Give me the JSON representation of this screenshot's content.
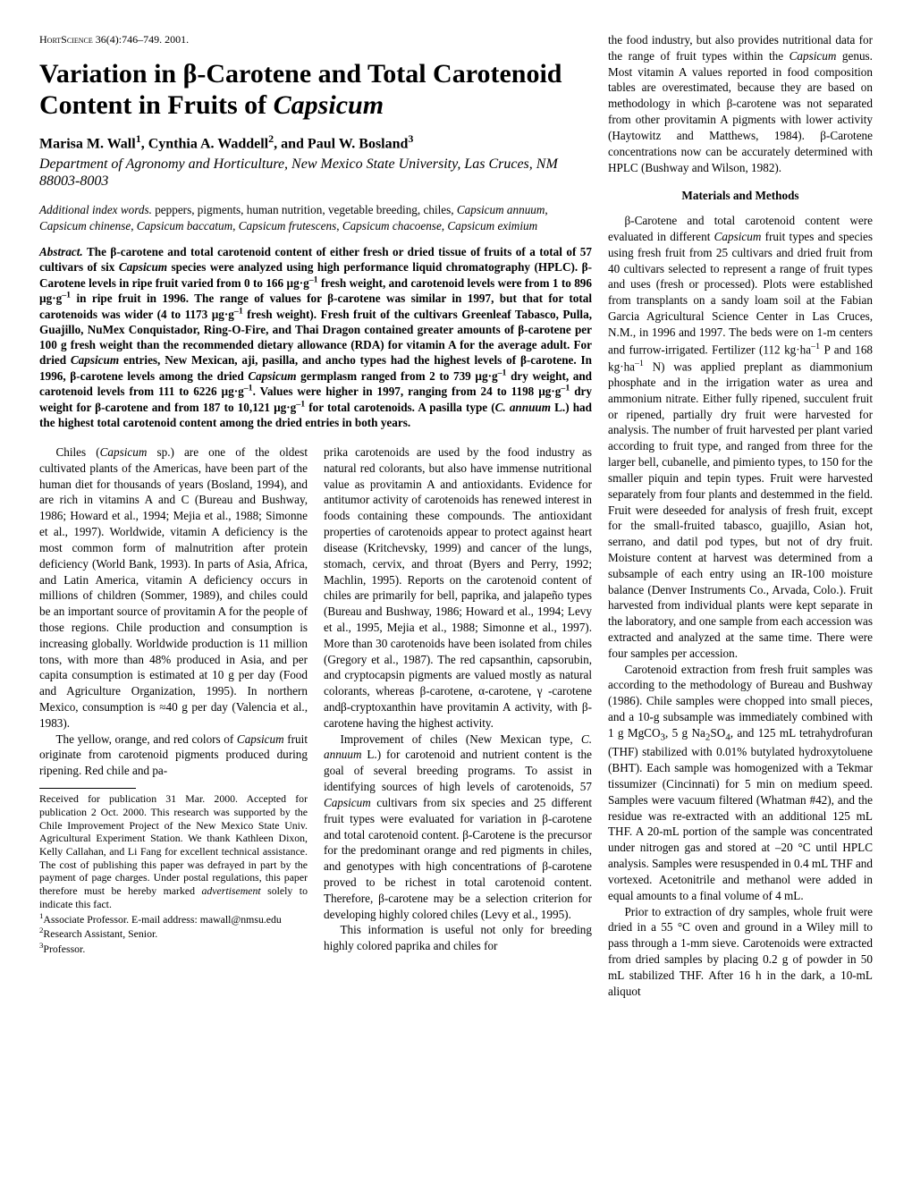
{
  "journal": {
    "name": "HortScience",
    "cite": "36(4):746–749. 2001."
  },
  "title": "Variation in β-Carotene and Total Carotenoid Content in Fruits of Capsicum",
  "authors_html": "Marisa M. Wall<sup>1</sup>, Cynthia A. Waddell<sup>2</sup>, and Paul W. Bosland<sup>3</sup>",
  "affiliation": "Department of Agronomy and Horticulture, New Mexico State University, Las Cruces, NM 88003-8003",
  "index_words_lead": "Additional index words.",
  "index_words": " peppers, pigments, human nutrition, vegetable breeding, chiles, <span class=\"ital\">Capsicum annuum</span>, <span class=\"ital\">Capsicum chinense</span>, <span class=\"ital\">Capsicum baccatum</span>, <span class=\"ital\">Capsicum frutescens</span>, <span class=\"ital\">Capsicum chacoense</span>, <span class=\"ital\">Capsicum eximium</span>",
  "abstract_lead": "Abstract.",
  "abstract": " The β-carotene and total carotenoid content of either fresh or dried tissue of fruits of a total of 57 cultivars of six <span class=\"ital\">Capsicum</span> species were analyzed using high performance liquid chromatography (HPLC). β-Carotene levels in ripe fruit varied from 0 to 166 µg·g<sup>–1</sup> fresh weight, and carotenoid levels were from 1 to 896 µg·g<sup>–1</sup> in ripe fruit in 1996. The range of values for β-carotene was similar in 1997, but that for total carotenoids was wider (4 to 1173 µg·g<sup>–1</sup> fresh weight). Fresh fruit of the cultivars Greenleaf Tabasco, Pulla, Guajillo, NuMex Conquistador, Ring-O-Fire, and Thai Dragon contained greater amounts of β-carotene per 100 g fresh weight than the recommended dietary allowance (RDA) for vitamin A for the average adult. For dried <span class=\"ital\">Capsicum</span> entries, New Mexican, aji, pasilla, and ancho types had the highest levels of β-carotene. In 1996, β-carotene levels among the dried <span class=\"ital\">Capsicum</span> germplasm ranged from 2 to 739 µg·g<sup>–1</sup> dry weight, and carotenoid levels from 111 to 6226 µg·g<sup>–1</sup>. Values were higher in 1997, ranging from 24 to 1198 µg·g<sup>–1</sup> dry weight for β-carotene and from 187 to 10,121 µg·g<sup>–1</sup> for total carotenoids. A pasilla type (<span class=\"ital\">C. annuum</span> L.) had the highest total carotenoid content among the dried entries in both years.",
  "body": {
    "p1": "Chiles (<span class=\"ital\">Capsicum</span> sp.) are one of the oldest cultivated plants of the Americas, have been part of the human diet for thousands of years (Bosland, 1994), and are rich in vitamins A and C (Bureau and Bushway, 1986; Howard et al., 1994; Mejia et al., 1988; Simonne et al., 1997). Worldwide, vitamin A deficiency is the most common form of malnutrition after protein deficiency (World Bank, 1993). In parts of Asia, Africa, and Latin America, vitamin A deficiency occurs in millions of children (Sommer, 1989), and chiles could be an important source of provitamin A for the people of those regions. Chile production and consumption is increasing globally. Worldwide production is 11 million tons, with more than 48% produced in Asia, and per capita consumption is estimated at 10 g per day (Food and Agriculture Organization, 1995). In northern Mexico, consumption is ≈40 g per day (Valencia et al., 1983).",
    "p2": "The yellow, orange, and red colors of <span class=\"ital\">Capsicum</span> fruit originate from carotenoid pigments produced during ripening. Red chile and pa-",
    "p3": "prika carotenoids are used by the food industry as natural red colorants, but also have immense nutritional value as provitamin A and antioxidants. Evidence for antitumor activity of carotenoids has renewed interest in foods containing these compounds. The antioxidant properties of carotenoids appear to protect against heart disease (Kritchevsky, 1999) and cancer of the lungs, stomach, cervix, and throat (Byers and Perry, 1992; Machlin, 1995). Reports on the carotenoid content of chiles are primarily for bell, paprika, and jalapeño types (Bureau and Bushway, 1986; Howard et al., 1994; Levy et al., 1995, Mejia et al., 1988; Simonne et al., 1997). More than 30 carotenoids have been isolated from chiles (Gregory et al., 1987). The red capsanthin, capsorubin, and cryptocapsin pigments are valued mostly as natural colorants, whereas β-carotene, α-carotene, γ -carotene andβ-cryptoxanthin have provitamin A activity, with β-carotene having the highest activity.",
    "p4": "Improvement of chiles (New Mexican type, <span class=\"ital\">C. annuum</span> L.) for carotenoid and nutrient content is the goal of several breeding programs. To assist in identifying sources of high levels of carotenoids, 57 <span class=\"ital\">Capsicum</span> cultivars from six species and 25 different fruit types were evaluated for variation in β-carotene and total carotenoid content. β-Carotene is the precursor for the predominant orange and red pigments in chiles, and genotypes with high concentrations of β-carotene proved to be richest in total carotenoid content. Therefore, β-carotene may be a selection criterion for developing highly colored chiles (Levy et al., 1995).",
    "p5": "This information is useful not only for breeding highly colored paprika and chiles for"
  },
  "footnotes": {
    "f0": "Received for publication 31 Mar. 2000. Accepted for publication 2 Oct. 2000. This research was supported by the Chile Improvement Project of the New Mexico State Univ. Agricultural Experiment Station. We thank Kathleen Dixon, Kelly Callahan, and Li Fang for excellent technical assistance. The cost of publishing this paper was defrayed in part by the payment of page charges. Under postal regulations, this paper therefore must be hereby marked <span class=\"ital\">advertisement</span> solely to indicate this fact.",
    "f1": "<sup>1</sup>Associate Professor. E-mail address: mawall@nmsu.edu",
    "f2": "<sup>2</sup>Research Assistant, Senior.",
    "f3": "<sup>3</sup>Professor."
  },
  "right": {
    "r1": "the food industry, but also provides nutritional data for the range of fruit types within the <span class=\"ital\">Capsicum</span> genus. Most vitamin A values reported in food composition tables are overestimated, because they are based on methodology in which β-carotene was not separated from other provitamin A pigments with lower activity (Haytowitz and Matthews, 1984). β-Carotene concentrations now can be accurately determined with HPLC (Bushway and Wilson, 1982).",
    "mm_head": "Materials and Methods",
    "r2": "β-Carotene and total carotenoid content were evaluated in different <span class=\"ital\">Capsicum</span> fruit types and species using fresh fruit from 25 cultivars and dried fruit from 40 cultivars selected to represent a range of fruit types and uses (fresh or processed). Plots were established from transplants on a sandy loam soil at the Fabian Garcia Agricultural Science Center in Las Cruces, N.M., in 1996 and 1997. The beds were on 1-m centers and furrow-irrigated. Fertilizer (112 kg·ha<sup>–1</sup> P and 168 kg·ha<sup>–1</sup> N) was applied preplant as diammonium phosphate and in the irrigation water as urea and ammonium nitrate. Either fully ripened, succulent fruit or ripened, partially dry fruit were harvested for analysis. The number of fruit harvested per plant varied according to fruit type, and ranged from three for the larger bell, cubanelle, and pimiento types, to 150 for the smaller piquin and tepin types. Fruit were harvested separately from four plants and destemmed in the field. Fruit were deseeded for analysis of fresh fruit, except for the small-fruited tabasco, guajillo, Asian hot, serrano, and datil pod types, but not of dry fruit. Moisture content at harvest was determined from a subsample of each entry using an IR-100 moisture balance (Denver Instruments Co., Arvada, Colo.). Fruit harvested from individual plants were kept separate in the laboratory, and one sample from each accession was extracted and analyzed at the same time. There were four samples per accession.",
    "r3": "Carotenoid extraction from fresh fruit samples was according to the methodology of Bureau and Bushway (1986). Chile samples were chopped into small pieces, and a 10-g subsample was immediately combined with 1 g MgCO<sub>3</sub>, 5 g Na<sub>2</sub>SO<sub>4</sub>, and 125 mL tetrahydrofuran (THF) stabilized with 0.01% butylated hydroxytoluene (BHT). Each sample was homogenized with a Tekmar tissumizer (Cincinnati) for 5 min on medium speed. Samples were vacuum filtered (Whatman #42), and the residue was re-extracted with an additional 125 mL THF. A 20-mL portion of the sample was concentrated under nitrogen gas and stored at –20 °C until HPLC analysis. Samples were resuspended in 0.4 mL THF and vortexed. Acetonitrile and methanol were added in equal amounts to a final volume of 4 mL.",
    "r4": "Prior to extraction of dry samples, whole fruit were dried in a 55 °C oven and ground in a Wiley mill to pass through a 1-mm sieve. Carotenoids were extracted from dried samples by placing 0.2 g of powder in 50 mL stabilized THF. After 16 h in the dark, a 10-mL aliquot"
  }
}
